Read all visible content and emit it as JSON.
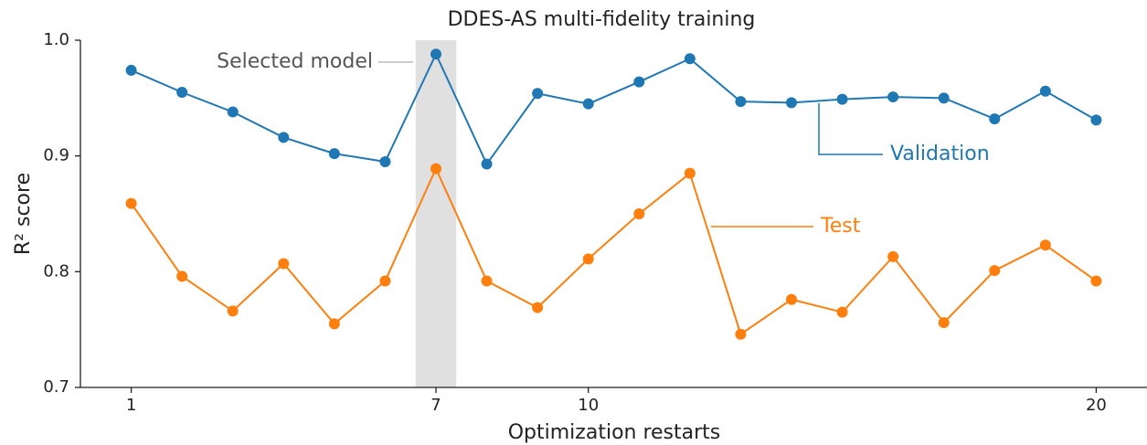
{
  "chart_data": {
    "type": "line",
    "title": "DDES-AS multi-fidelity training",
    "x_label": "Optimization restarts",
    "y_label": "R² score",
    "x": [
      1,
      2,
      3,
      4,
      5,
      6,
      7,
      8,
      9,
      10,
      11,
      12,
      13,
      14,
      15,
      16,
      17,
      18,
      19,
      20
    ],
    "series": [
      {
        "name": "Validation",
        "color": "#1f77b4",
        "values": [
          0.974,
          0.955,
          0.938,
          0.916,
          0.902,
          0.895,
          0.988,
          0.893,
          0.954,
          0.945,
          0.964,
          0.984,
          0.947,
          0.946,
          0.949,
          0.951,
          0.95,
          0.932,
          0.956,
          0.931
        ]
      },
      {
        "name": "Test",
        "color": "#ff7f0e",
        "values": [
          0.859,
          0.796,
          0.766,
          0.807,
          0.755,
          0.792,
          0.889,
          0.792,
          0.769,
          0.811,
          0.85,
          0.885,
          0.746,
          0.776,
          0.765,
          0.813,
          0.756,
          0.801,
          0.823,
          0.792
        ]
      }
    ],
    "highlight_span": [
      6.6,
      7.4
    ],
    "highlight_label": "Selected model",
    "xlim": [
      0,
      21
    ],
    "xticks": [
      1,
      7,
      10,
      20
    ],
    "ylim": [
      0.7,
      1.0
    ],
    "yticks": [
      0.7,
      0.8,
      0.9,
      {
        "value": 1.0,
        "label": "1.0"
      }
    ]
  }
}
